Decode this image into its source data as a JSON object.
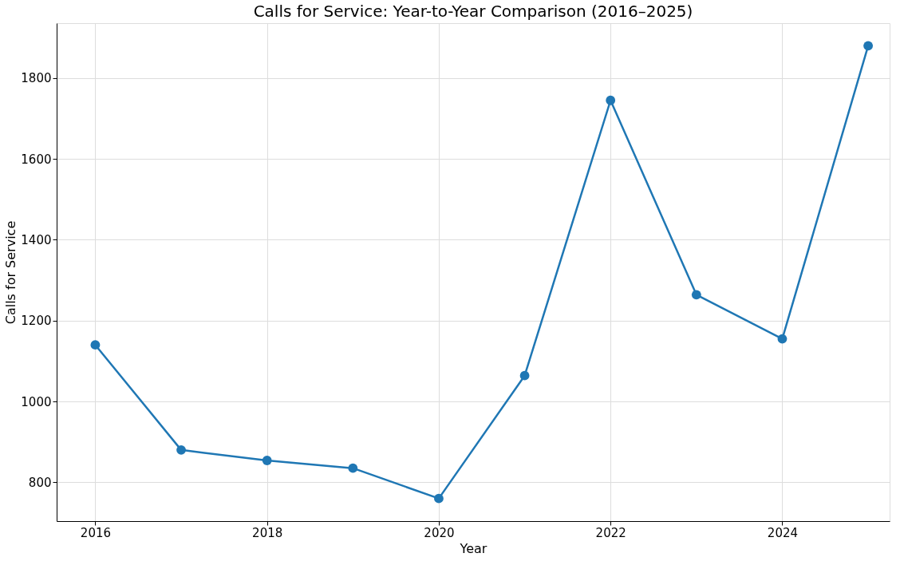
{
  "chart_data": {
    "type": "line",
    "title": "Calls for Service: Year-to-Year Comparison (2016–2025)",
    "xlabel": "Year",
    "ylabel": "Calls for Service",
    "x": [
      2016,
      2017,
      2018,
      2019,
      2020,
      2021,
      2022,
      2023,
      2024,
      2025
    ],
    "series": [
      {
        "color": "#1f77b4",
        "values": [
          1140,
          880,
          854,
          835,
          760,
          1064,
          1745,
          1264,
          1155,
          1880
        ]
      }
    ],
    "xlim": [
      2015.55,
      2025.25
    ],
    "xticks": [
      2016,
      2018,
      2020,
      2022,
      2024
    ],
    "ylim": [
      704,
      1936
    ],
    "yticks": [
      800,
      1000,
      1200,
      1400,
      1600,
      1800
    ],
    "grid": true,
    "marker": "circle",
    "line_style": "solid"
  }
}
